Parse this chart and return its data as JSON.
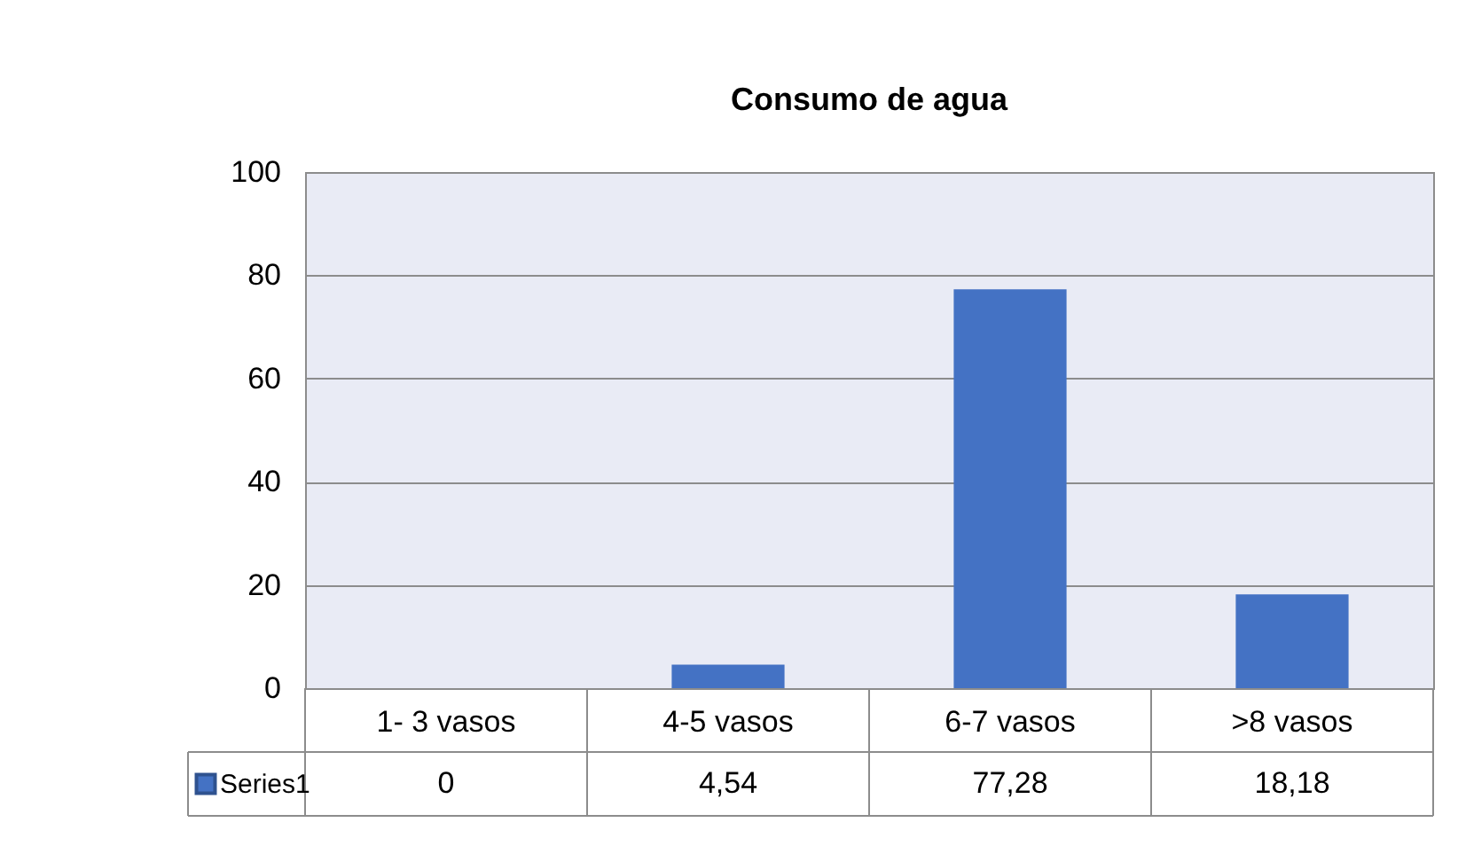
{
  "chart_data": {
    "type": "bar",
    "title": "Consumo de agua",
    "categories": [
      "1- 3 vasos",
      "4-5 vasos",
      "6-7 vasos",
      ">8 vasos"
    ],
    "series": [
      {
        "name": "Series1",
        "color": "#4472c4",
        "values": [
          0,
          4.54,
          77.28,
          18.18
        ],
        "value_labels": [
          "0",
          "4,54",
          "77,28",
          "18,18"
        ]
      }
    ],
    "ylim": [
      0,
      100
    ],
    "yticks": [
      0,
      20,
      40,
      60,
      80,
      100
    ],
    "grid": "y",
    "legend": "bottom"
  }
}
